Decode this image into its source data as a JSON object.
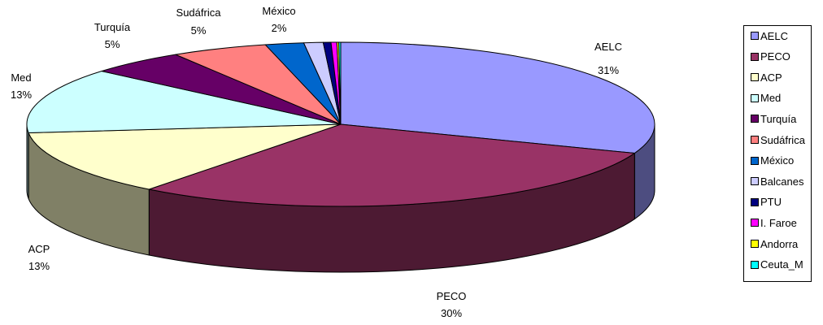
{
  "chart_data": {
    "type": "pie",
    "three_d": true,
    "slices": [
      {
        "name": "AELC",
        "value": 31,
        "label": "31%",
        "color": "#9999FF",
        "side_color": "#4D4D80"
      },
      {
        "name": "PECO",
        "value": 30,
        "label": "30%",
        "color": "#993366",
        "side_color": "#4D1A33"
      },
      {
        "name": "ACP",
        "value": 13,
        "label": "13%",
        "color": "#FFFFCC",
        "side_color": "#808066"
      },
      {
        "name": "Med",
        "value": 13,
        "label": "13%",
        "color": "#CCFFFF",
        "side_color": "#668080"
      },
      {
        "name": "Turquía",
        "value": 5,
        "label": "5%",
        "color": "#660066",
        "side_color": "#330033"
      },
      {
        "name": "Sudáfrica",
        "value": 5,
        "label": "5%",
        "color": "#FF8080",
        "side_color": "#804040"
      },
      {
        "name": "México",
        "value": 2,
        "label": "2%",
        "color": "#0066CC",
        "side_color": "#003366"
      },
      {
        "name": "Balcanes",
        "value": 1,
        "label": "",
        "color": "#CCCCFF",
        "side_color": "#666680"
      },
      {
        "name": "PTU",
        "value": 0.4,
        "label": "",
        "color": "#000080",
        "side_color": "#000040"
      },
      {
        "name": "I. Faroe",
        "value": 0.3,
        "label": "",
        "color": "#FF00FF",
        "side_color": "#800080"
      },
      {
        "name": "Andorra",
        "value": 0.1,
        "label": "",
        "color": "#FFFF00",
        "side_color": "#808000"
      },
      {
        "name": "Ceuta_M",
        "value": 0.1,
        "label": "",
        "color": "#00FFFF",
        "side_color": "#008080"
      }
    ],
    "legend_position": "right"
  }
}
